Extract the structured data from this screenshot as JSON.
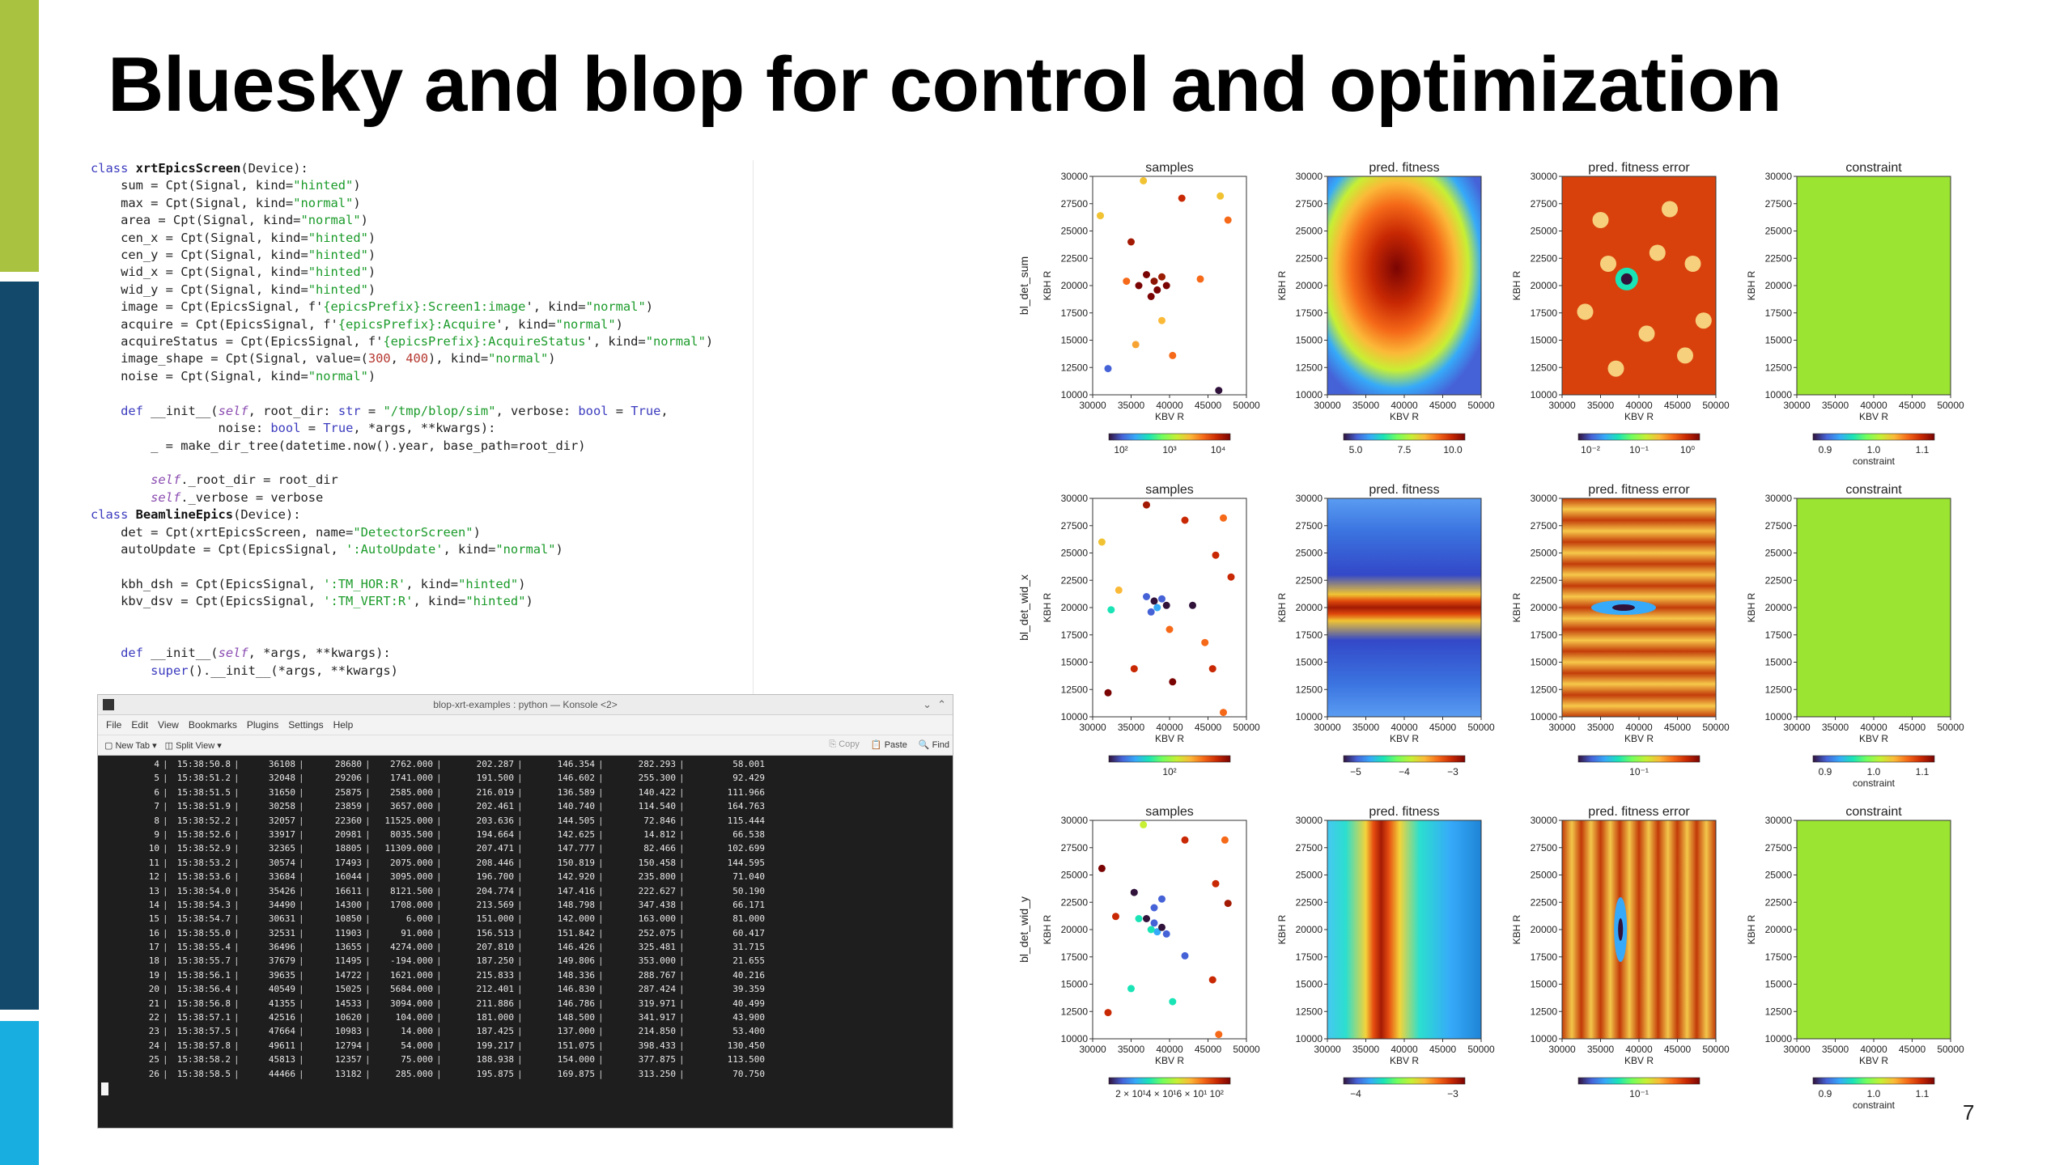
{
  "title": "Bluesky and blop for control and optimization",
  "page_number": "7",
  "colors": {
    "sidebar_green": "#a9c23f",
    "sidebar_navy": "#134a6c",
    "sidebar_cyan": "#19aee0",
    "terminal_bg": "#1e1e1e"
  },
  "terminal": {
    "window_title": "blop-xrt-examples : python — Konsole <2>",
    "menu": [
      "File",
      "Edit",
      "View",
      "Bookmarks",
      "Plugins",
      "Settings",
      "Help"
    ],
    "toolbar": {
      "new_tab": "New Tab",
      "split_view": "Split View",
      "copy": "Copy",
      "paste": "Paste",
      "find": "Find"
    },
    "rows": [
      [
        "4",
        "15:38:50.8",
        "36108",
        "28680",
        "2762.000",
        "202.287",
        "146.354",
        "282.293",
        "58.001"
      ],
      [
        "5",
        "15:38:51.2",
        "32048",
        "29206",
        "1741.000",
        "191.500",
        "146.602",
        "255.300",
        "92.429"
      ],
      [
        "6",
        "15:38:51.5",
        "31650",
        "25875",
        "2585.000",
        "216.019",
        "136.589",
        "140.422",
        "111.966"
      ],
      [
        "7",
        "15:38:51.9",
        "30258",
        "23859",
        "3657.000",
        "202.461",
        "140.740",
        "114.540",
        "164.763"
      ],
      [
        "8",
        "15:38:52.2",
        "32057",
        "22360",
        "11525.000",
        "203.636",
        "144.505",
        "72.846",
        "115.444"
      ],
      [
        "9",
        "15:38:52.6",
        "33917",
        "20981",
        "8035.500",
        "194.664",
        "142.625",
        "14.812",
        "66.538"
      ],
      [
        "10",
        "15:38:52.9",
        "32365",
        "18805",
        "11309.000",
        "207.471",
        "147.777",
        "82.466",
        "102.699"
      ],
      [
        "11",
        "15:38:53.2",
        "30574",
        "17493",
        "2075.000",
        "208.446",
        "150.819",
        "150.458",
        "144.595"
      ],
      [
        "12",
        "15:38:53.6",
        "33684",
        "16044",
        "3095.000",
        "196.700",
        "142.920",
        "235.800",
        "71.040"
      ],
      [
        "13",
        "15:38:54.0",
        "35426",
        "16611",
        "8121.500",
        "204.774",
        "147.416",
        "222.627",
        "50.190"
      ],
      [
        "14",
        "15:38:54.3",
        "34490",
        "14300",
        "1708.000",
        "213.569",
        "148.798",
        "347.438",
        "66.171"
      ],
      [
        "15",
        "15:38:54.7",
        "30631",
        "10850",
        "6.000",
        "151.000",
        "142.000",
        "163.000",
        "81.000"
      ],
      [
        "16",
        "15:38:55.0",
        "32531",
        "11903",
        "91.000",
        "156.513",
        "151.842",
        "252.075",
        "60.417"
      ],
      [
        "17",
        "15:38:55.4",
        "36496",
        "13655",
        "4274.000",
        "207.810",
        "146.426",
        "325.481",
        "31.715"
      ],
      [
        "18",
        "15:38:55.7",
        "37679",
        "11495",
        "-194.000",
        "187.250",
        "149.806",
        "353.000",
        "21.655"
      ],
      [
        "19",
        "15:38:56.1",
        "39635",
        "14722",
        "1621.000",
        "215.833",
        "148.336",
        "288.767",
        "40.216"
      ],
      [
        "20",
        "15:38:56.4",
        "40549",
        "15025",
        "5684.000",
        "212.401",
        "146.830",
        "287.424",
        "39.359"
      ],
      [
        "21",
        "15:38:56.8",
        "41355",
        "14533",
        "3094.000",
        "211.886",
        "146.786",
        "319.971",
        "40.499"
      ],
      [
        "22",
        "15:38:57.1",
        "42516",
        "10620",
        "104.000",
        "181.000",
        "148.500",
        "341.917",
        "43.900"
      ],
      [
        "23",
        "15:38:57.5",
        "47664",
        "10983",
        "14.000",
        "187.425",
        "137.000",
        "214.850",
        "53.400"
      ],
      [
        "24",
        "15:38:57.8",
        "49611",
        "12794",
        "54.000",
        "199.217",
        "151.075",
        "398.433",
        "130.450"
      ],
      [
        "25",
        "15:38:58.2",
        "45813",
        "12357",
        "75.000",
        "188.938",
        "154.000",
        "377.875",
        "113.500"
      ],
      [
        "26",
        "15:38:58.5",
        "44466",
        "13182",
        "285.000",
        "195.875",
        "169.875",
        "313.250",
        "70.750"
      ]
    ]
  },
  "plots": {
    "column_titles": [
      "samples",
      "pred.  fitness",
      "pred.  fitness error",
      "constraint"
    ],
    "row_ylabels": [
      "bl_det_sum",
      "bl_det_wid_x",
      "bl_det_wid_y"
    ],
    "panel_ylabel": "KBH R",
    "panel_xlabel": "KBV R",
    "yticks": [
      "30000",
      "27500",
      "25000",
      "22500",
      "20000",
      "17500",
      "15000",
      "12500",
      "10000"
    ],
    "xticks": [
      "30000",
      "35000",
      "40000",
      "45000",
      "50000"
    ],
    "colorbar_ticks": [
      [
        [
          "10²",
          "10³",
          "10⁴"
        ],
        [
          "5.0",
          "7.5",
          "10.0"
        ],
        [
          "10⁻²",
          "10⁻¹",
          "10⁰"
        ],
        [
          "0.9",
          "1.0",
          "1.1"
        ]
      ],
      [
        [
          "10²"
        ],
        [
          "−5",
          "−4",
          "−3"
        ],
        [
          "10⁻¹"
        ],
        [
          "0.9",
          "1.0",
          "1.1"
        ]
      ],
      [
        [
          "2 × 10¹4 × 10¹6 × 10¹ 10²"
        ],
        [
          "−4",
          "−3"
        ],
        [
          "10⁻¹"
        ],
        [
          "0.9",
          "1.0",
          "1.1"
        ]
      ]
    ],
    "constraint_cbar_label": "constraint"
  },
  "code_lines": [
    [
      [
        "kw",
        "class "
      ],
      [
        "cls",
        "xrtEpicsScreen"
      ],
      [
        "",
        "(Device):"
      ]
    ],
    [
      [
        "",
        "    sum = Cpt(Signal, kind="
      ],
      [
        "str",
        "\"hinted\""
      ],
      [
        "",
        ")"
      ]
    ],
    [
      [
        "",
        "    max = Cpt(Signal, kind="
      ],
      [
        "str",
        "\"normal\""
      ],
      [
        "",
        ")"
      ]
    ],
    [
      [
        "",
        "    area = Cpt(Signal, kind="
      ],
      [
        "str",
        "\"normal\""
      ],
      [
        "",
        ")"
      ]
    ],
    [
      [
        "",
        "    cen_x = Cpt(Signal, kind="
      ],
      [
        "str",
        "\"hinted\""
      ],
      [
        "",
        ")"
      ]
    ],
    [
      [
        "",
        "    cen_y = Cpt(Signal, kind="
      ],
      [
        "str",
        "\"hinted\""
      ],
      [
        "",
        ")"
      ]
    ],
    [
      [
        "",
        "    wid_x = Cpt(Signal, kind="
      ],
      [
        "str",
        "\"hinted\""
      ],
      [
        "",
        ")"
      ]
    ],
    [
      [
        "",
        "    wid_y = Cpt(Signal, kind="
      ],
      [
        "str",
        "\"hinted\""
      ],
      [
        "",
        ")"
      ]
    ],
    [
      [
        "",
        "    image = Cpt(EpicsSignal, f'"
      ],
      [
        "str",
        "{epicsPrefix}:Screen1:image"
      ],
      [
        "",
        "', kind="
      ],
      [
        "str",
        "\"normal\""
      ],
      [
        "",
        ")"
      ]
    ],
    [
      [
        "",
        "    acquire = Cpt(EpicsSignal, f'"
      ],
      [
        "str",
        "{epicsPrefix}:Acquire"
      ],
      [
        "",
        "', kind="
      ],
      [
        "str",
        "\"normal\""
      ],
      [
        "",
        ")"
      ]
    ],
    [
      [
        "",
        "    acquireStatus = Cpt(EpicsSignal, f'"
      ],
      [
        "str",
        "{epicsPrefix}:AcquireStatus"
      ],
      [
        "",
        "', kind="
      ],
      [
        "str",
        "\"normal\""
      ],
      [
        "",
        ")"
      ]
    ],
    [
      [
        "",
        "    image_shape = Cpt(Signal, value=("
      ],
      [
        "num",
        "300"
      ],
      [
        "",
        ", "
      ],
      [
        "num",
        "400"
      ],
      [
        "",
        "), kind="
      ],
      [
        "str",
        "\"normal\""
      ],
      [
        "",
        ")"
      ]
    ],
    [
      [
        "",
        "    noise = Cpt(Signal, kind="
      ],
      [
        "str",
        "\"normal\""
      ],
      [
        "",
        ")"
      ]
    ],
    [
      [
        "",
        ""
      ]
    ],
    [
      [
        "",
        "    "
      ],
      [
        "kw",
        "def "
      ],
      [
        "",
        "__init__("
      ],
      [
        "sf",
        "self"
      ],
      [
        "",
        ", root_dir: "
      ],
      [
        "kw",
        "str"
      ],
      [
        "",
        " = "
      ],
      [
        "str",
        "\"/tmp/blop/sim\""
      ],
      [
        "",
        ", verbose: "
      ],
      [
        "kw",
        "bool"
      ],
      [
        "",
        " = "
      ],
      [
        "kw",
        "True"
      ],
      [
        "",
        ","
      ]
    ],
    [
      [
        "",
        "                 noise: "
      ],
      [
        "kw",
        "bool"
      ],
      [
        "",
        " = "
      ],
      [
        "kw",
        "True"
      ],
      [
        "",
        ", *args, **kwargs):"
      ]
    ],
    [
      [
        "",
        "        _ = make_dir_tree(datetime.now().year, base_path=root_dir)"
      ]
    ],
    [
      [
        "",
        ""
      ]
    ],
    [
      [
        "",
        "        "
      ],
      [
        "sf",
        "self"
      ],
      [
        "",
        "._root_dir = root_dir"
      ]
    ],
    [
      [
        "",
        "        "
      ],
      [
        "sf",
        "self"
      ],
      [
        "",
        "._verbose = verbose"
      ]
    ],
    [
      [
        "kw",
        "class "
      ],
      [
        "cls",
        "BeamlineEpics"
      ],
      [
        "",
        "(Device):"
      ]
    ],
    [
      [
        "",
        "    det = Cpt(xrtEpicsScreen, name="
      ],
      [
        "str",
        "\"DetectorScreen\""
      ],
      [
        "",
        ")"
      ]
    ],
    [
      [
        "",
        "    autoUpdate = Cpt(EpicsSignal, "
      ],
      [
        "str",
        "':AutoUpdate'"
      ],
      [
        "",
        ", kind="
      ],
      [
        "str",
        "\"normal\""
      ],
      [
        "",
        ")"
      ]
    ],
    [
      [
        "",
        ""
      ]
    ],
    [
      [
        "",
        "    kbh_dsh = Cpt(EpicsSignal, "
      ],
      [
        "str",
        "':TM_HOR:R'"
      ],
      [
        "",
        ", kind="
      ],
      [
        "str",
        "\"hinted\""
      ],
      [
        "",
        ")"
      ]
    ],
    [
      [
        "",
        "    kbv_dsv = Cpt(EpicsSignal, "
      ],
      [
        "str",
        "':TM_VERT:R'"
      ],
      [
        "",
        ", kind="
      ],
      [
        "str",
        "\"hinted\""
      ],
      [
        "",
        ")"
      ]
    ],
    [
      [
        "",
        ""
      ]
    ],
    [
      [
        "",
        ""
      ]
    ],
    [
      [
        "",
        "    "
      ],
      [
        "kw",
        "def "
      ],
      [
        "",
        "__init__("
      ],
      [
        "sf",
        "self"
      ],
      [
        "",
        ", *args, **kwargs):"
      ]
    ],
    [
      [
        "",
        "        "
      ],
      [
        "kw",
        "super"
      ],
      [
        "",
        "().__init__(*args, **kwargs)"
      ]
    ]
  ]
}
